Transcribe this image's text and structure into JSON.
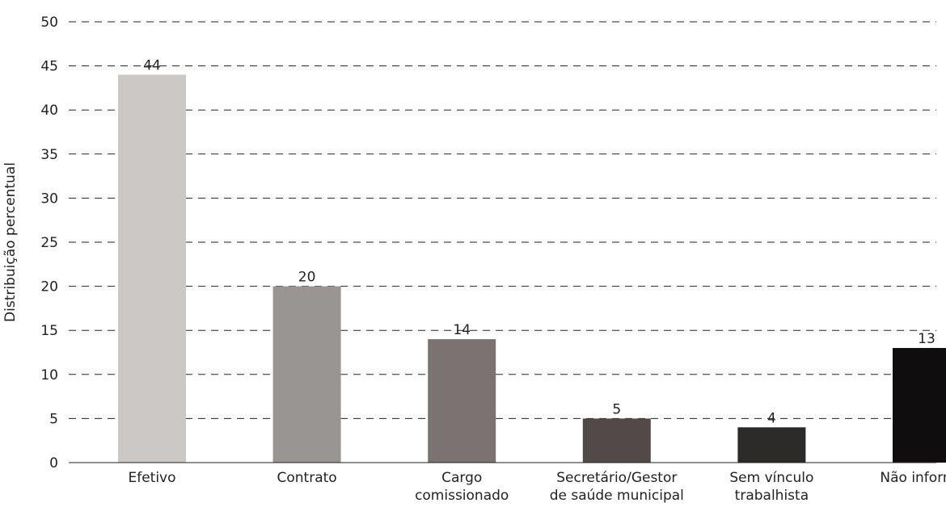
{
  "chart_data": {
    "type": "bar",
    "title": "",
    "xlabel": "",
    "ylabel": "Distribuição percentual",
    "ylim": [
      0,
      50
    ],
    "yticks": [
      0,
      5,
      10,
      15,
      20,
      25,
      30,
      35,
      40,
      45,
      50
    ],
    "grid": true,
    "categories": [
      [
        "Efetivo"
      ],
      [
        "Contrato"
      ],
      [
        "Cargo",
        "comissionado"
      ],
      [
        "Secretário/Gestor",
        "de saúde municipal"
      ],
      [
        "Sem vínculo",
        "trabalhista"
      ],
      [
        "Não informou"
      ]
    ],
    "values": [
      44,
      20,
      14,
      5,
      4,
      13
    ],
    "value_labels": [
      "44",
      "20",
      "14",
      "5",
      "4",
      "13"
    ],
    "colors": [
      "#cbc8c6",
      "#999593",
      "#7b7371",
      "#524a48",
      "#2d2a2a",
      "#0f0d0d"
    ]
  }
}
